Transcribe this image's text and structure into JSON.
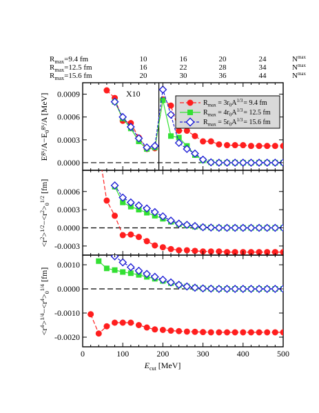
{
  "colors": {
    "r94": "#ff1e1e",
    "r125": "#33e033",
    "r156": "#1f1fd6",
    "axis": "#000000",
    "legend_bg": "#d9d9d9"
  },
  "top_table": {
    "rows": [
      {
        "label": "R",
        "sub": "max",
        "suffix": "=9.4 fm",
        "values": [
          "10",
          "16",
          "20",
          "24"
        ]
      },
      {
        "label": "R",
        "sub": "max",
        "suffix": "=12.5 fm",
        "values": [
          "16",
          "22",
          "28",
          "34"
        ]
      },
      {
        "label": "R",
        "sub": "max",
        "suffix": "=15.6 fm",
        "values": [
          "20",
          "30",
          "36",
          "44"
        ]
      }
    ],
    "nmax_label": "N",
    "nmax_sup": "max"
  },
  "x_axis": {
    "label_main": "E",
    "label_sub": "cut",
    "label_unit": " [MeV]",
    "ticks": [
      "0",
      "100",
      "200",
      "300",
      "400",
      "500"
    ]
  },
  "legend": {
    "entries": [
      {
        "text_pre": "R",
        "text_sub": "max",
        "text_mid": " = 3r",
        "text_sub2": "0",
        "text_a": "A",
        "text_sup": "1/3",
        "text_post": "= 9.4 fm"
      },
      {
        "text_pre": "R",
        "text_sub": "max",
        "text_mid": " = 4r",
        "text_sub2": "0",
        "text_a": "A",
        "text_sup": "1/3",
        "text_post": "= 12.5 fm"
      },
      {
        "text_pre": "R",
        "text_sub": "max",
        "text_mid": " = 5r",
        "text_sub2": "0",
        "text_a": "A",
        "text_sup": "1/3",
        "text_post": "= 15.6 fm"
      }
    ]
  },
  "annotation": {
    "x10": "X10"
  },
  "chart_data": [
    {
      "type": "line",
      "ylabel": "E^{gs}/A - E_0^{gs}/A [MeV]",
      "ylabel_parts": {
        "e": "E",
        "gs": "gs",
        "mid": "/A−E",
        "zero": "0",
        "gs2": "gs",
        "tail": "/A [MeV]"
      },
      "xlim": [
        0,
        500
      ],
      "ylim": [
        -0.0001,
        0.00105
      ],
      "yticks": [
        "0.0000",
        "0.0003",
        "0.0006",
        "0.0009"
      ],
      "ytick_values": [
        0,
        0.0003,
        0.0006,
        0.0009
      ],
      "zero_line": true,
      "vertical_line_x": 190,
      "series": [
        {
          "name": "R_max = 3r_0A^{1/3} = 9.4 fm",
          "x": [
            60,
            80,
            100,
            120,
            140,
            160,
            180,
            200,
            220,
            240,
            260,
            280,
            300,
            320,
            340,
            360,
            380,
            400,
            420,
            440,
            460,
            480,
            500
          ],
          "y": [
            0.00095,
            0.00085,
            0.00055,
            0.00052,
            0.00033,
            0.00018,
            0.00019,
            0.00083,
            0.00075,
            0.00042,
            0.00042,
            0.00035,
            0.00028,
            0.00028,
            0.00024,
            0.00023,
            0.00023,
            0.00023,
            0.00022,
            0.00022,
            0.00022,
            0.00022,
            0.00022
          ]
        },
        {
          "name": "R_max = 4r_0A^{1/3} = 12.5 fm",
          "x": [
            80,
            100,
            120,
            140,
            160,
            180,
            200,
            220,
            240,
            260,
            280,
            300,
            320,
            340,
            360,
            380,
            400,
            420,
            440,
            460,
            480,
            500
          ],
          "y": [
            0.0008,
            0.00058,
            0.00045,
            0.00028,
            0.00018,
            0.0002,
            0.00082,
            0.00035,
            0.00033,
            0.00022,
            0.0001,
            3e-05,
            5e-06,
            0.0,
            0.0,
            0.0,
            0.0,
            0.0,
            0.0,
            0.0,
            0.0,
            0.0
          ]
        },
        {
          "name": "R_max = 5r_0A^{1/3} = 15.6 fm",
          "x": [
            80,
            100,
            120,
            140,
            160,
            180,
            200,
            220,
            240,
            260,
            280,
            300,
            320,
            340,
            360,
            380,
            400,
            420,
            440,
            460,
            480,
            500
          ],
          "y": [
            0.0008,
            0.0006,
            0.00047,
            0.00032,
            0.0002,
            0.00022,
            0.00096,
            0.00063,
            0.00026,
            0.00018,
            0.00012,
            4e-05,
            5e-06,
            0.0,
            0.0,
            0.0,
            0.0,
            0.0,
            0.0,
            0.0,
            0.0,
            0.0
          ]
        }
      ]
    },
    {
      "type": "line",
      "ylabel": "<r^2>^{1/2} - <r^2>_0^{1/2} [fm]",
      "ylabel_parts": {
        "r": "r",
        "two": "2",
        "half": "1/2",
        "minus": "−",
        "zero": "0",
        "tail": " [fm]"
      },
      "xlim": [
        0,
        500
      ],
      "ylim": [
        -0.00045,
        0.00095
      ],
      "yticks": [
        "-0.0003",
        "0.0000",
        "0.0003",
        "0.0006"
      ],
      "ytick_values": [
        -0.0003,
        0,
        0.0003,
        0.0006
      ],
      "zero_line": true,
      "series": [
        {
          "name": "R_max = 3r_0A^{1/3} = 9.4 fm",
          "x": [
            40,
            60,
            80,
            100,
            120,
            140,
            160,
            180,
            200,
            220,
            240,
            260,
            280,
            300,
            320,
            340,
            360,
            380,
            400,
            420,
            440,
            460,
            480,
            500
          ],
          "y": [
            0.0013,
            0.00045,
            0.0002,
            -0.00012,
            -0.00011,
            -0.00015,
            -0.00022,
            -0.00029,
            -0.00032,
            -0.00035,
            -0.00037,
            -0.00037,
            -0.00038,
            -0.00039,
            -0.00039,
            -0.00039,
            -0.0004,
            -0.0004,
            -0.0004,
            -0.0004,
            -0.0004,
            -0.0004,
            -0.0004,
            -0.0004
          ]
        },
        {
          "name": "R_max = 4r_0A^{1/3} = 12.5 fm",
          "x": [
            80,
            100,
            120,
            140,
            160,
            180,
            200,
            220,
            240,
            260,
            280,
            300,
            320,
            340,
            360,
            380,
            400,
            420,
            440,
            460,
            480,
            500
          ],
          "y": [
            0.00068,
            0.00042,
            0.00035,
            0.0003,
            0.00025,
            0.0002,
            0.00015,
            0.0001,
            6e-05,
            4e-05,
            2e-05,
            1e-05,
            5e-06,
            0.0,
            0.0,
            0.0,
            0.0,
            0.0,
            0.0,
            0.0,
            0.0,
            0.0
          ]
        },
        {
          "name": "R_max = 5r_0A^{1/3} = 15.6 fm",
          "x": [
            80,
            100,
            120,
            140,
            160,
            180,
            200,
            220,
            240,
            260,
            280,
            300,
            320,
            340,
            360,
            380,
            400,
            420,
            440,
            460,
            480,
            500
          ],
          "y": [
            0.0007,
            0.0005,
            0.00042,
            0.00037,
            0.00032,
            0.00026,
            0.00019,
            0.00012,
            7e-05,
            5e-05,
            3e-05,
            1e-05,
            5e-06,
            0.0,
            0.0,
            0.0,
            0.0,
            0.0,
            0.0,
            0.0,
            0.0,
            0.0
          ]
        }
      ]
    },
    {
      "type": "line",
      "ylabel": "<r^4>^{1/4} - <r^4>_0^{1/4} [fm]",
      "ylabel_parts": {
        "r": "r",
        "four": "4",
        "quarter": "1/4",
        "minus": "−",
        "zero": "0",
        "tail": " [fm]"
      },
      "xlim": [
        0,
        500
      ],
      "ylim": [
        -0.0024,
        0.0014
      ],
      "yticks": [
        "-0.0020",
        "-0.0010",
        "0.0000",
        "0.0010"
      ],
      "ytick_values": [
        -0.002,
        -0.001,
        0,
        0.001
      ],
      "zero_line": true,
      "series": [
        {
          "name": "R_max = 3r_0A^{1/3} = 9.4 fm",
          "x": [
            20,
            40,
            60,
            80,
            100,
            120,
            140,
            160,
            180,
            200,
            220,
            240,
            260,
            280,
            300,
            320,
            340,
            360,
            380,
            400,
            420,
            440,
            460,
            480,
            500
          ],
          "y": [
            -0.00105,
            -0.00185,
            -0.00155,
            -0.0014,
            -0.0014,
            -0.0014,
            -0.0015,
            -0.0016,
            -0.00168,
            -0.0017,
            -0.00173,
            -0.00175,
            -0.00177,
            -0.00178,
            -0.00179,
            -0.0018,
            -0.0018,
            -0.0018,
            -0.0018,
            -0.0018,
            -0.0018,
            -0.0018,
            -0.0018,
            -0.0018,
            -0.0018
          ]
        },
        {
          "name": "R_max = 4r_0A^{1/3} = 12.5 fm",
          "x": [
            40,
            60,
            80,
            100,
            120,
            140,
            160,
            180,
            200,
            220,
            240,
            260,
            280,
            300,
            320,
            340,
            360,
            380,
            400,
            420,
            440,
            460,
            480,
            500
          ],
          "y": [
            0.00115,
            0.00085,
            0.00078,
            0.0007,
            0.00065,
            0.00058,
            0.0005,
            0.00042,
            0.00033,
            0.00024,
            0.00016,
            0.0001,
            5e-05,
            2e-05,
            1e-05,
            0.0,
            0.0,
            0.0,
            0.0,
            0.0,
            0.0,
            0.0,
            0.0,
            0.0
          ]
        },
        {
          "name": "R_max = 5r_0A^{1/3} = 15.6 fm",
          "x": [
            80,
            100,
            120,
            140,
            160,
            180,
            200,
            220,
            240,
            260,
            280,
            300,
            320,
            340,
            360,
            380,
            400,
            420,
            440,
            460,
            480,
            500
          ],
          "y": [
            0.00135,
            0.0011,
            0.0009,
            0.00075,
            0.00062,
            0.0005,
            0.00038,
            0.00027,
            0.00017,
            0.0001,
            5e-05,
            2e-05,
            1e-05,
            0.0,
            0.0,
            0.0,
            0.0,
            0.0,
            0.0,
            0.0,
            0.0,
            0.0
          ]
        }
      ]
    }
  ]
}
